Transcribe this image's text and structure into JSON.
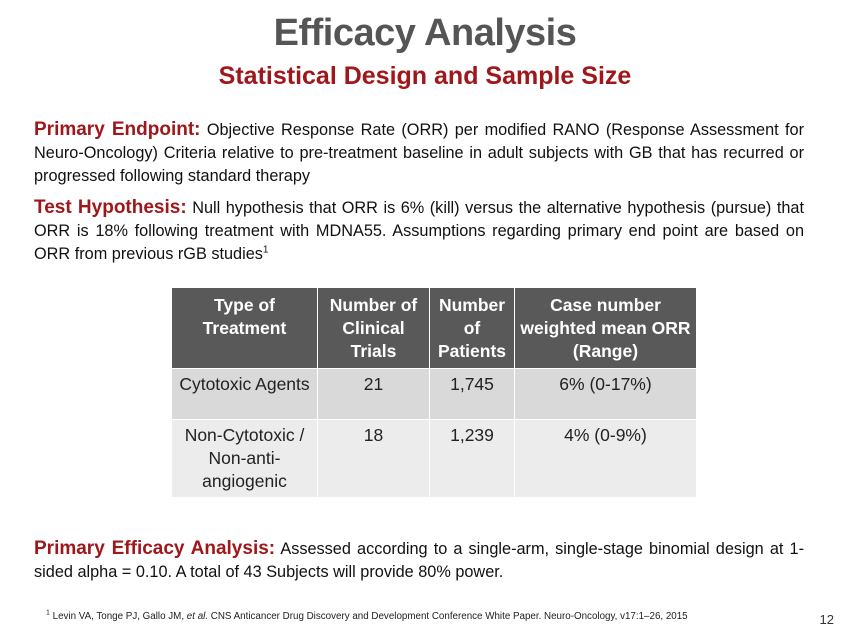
{
  "title": "Efficacy Analysis",
  "subtitle": "Statistical Design and Sample Size",
  "primary_endpoint": {
    "label": "Primary Endpoint:",
    "text": "Objective Response Rate (ORR) per modified RANO (Response Assessment for Neuro-Oncology) Criteria relative to pre-treatment baseline in adult subjects with GB that has recurred or progressed following standard therapy"
  },
  "test_hypothesis": {
    "label": "Test Hypothesis:",
    "text": "Null hypothesis that ORR is 6% (kill) versus the alternative hypothesis (pursue) that ORR is 18% following treatment with MDNA55. Assumptions regarding primary end point are based on ORR from previous rGB studies",
    "superscript": "1"
  },
  "table": {
    "headers": [
      "Type of Treatment",
      "Number of Clinical Trials",
      "Number of Patients",
      "Case number weighted mean ORR (Range)"
    ],
    "rows": [
      [
        "Cytotoxic Agents",
        "21",
        "1,745",
        "6% (0-17%)"
      ],
      [
        "Non-Cytotoxic / Non-anti-angiogenic",
        "18",
        "1,239",
        "4% (0-9%)"
      ]
    ]
  },
  "primary_efficacy": {
    "label": "Primary Efficacy Analysis:",
    "text": "Assessed according to a single-arm, single-stage binomial design at 1-sided alpha = 0.10. A total of 43 Subjects will provide 80% power."
  },
  "footnote": {
    "marker": "1",
    "authors": "Levin VA, Tonge PJ, Gallo JM,",
    "etal": "et al.",
    "rest": "CNS Anticancer Drug Discovery and Development Conference White Paper. Neuro-Oncology, v17:1–26, 2015"
  },
  "page_number": "12"
}
